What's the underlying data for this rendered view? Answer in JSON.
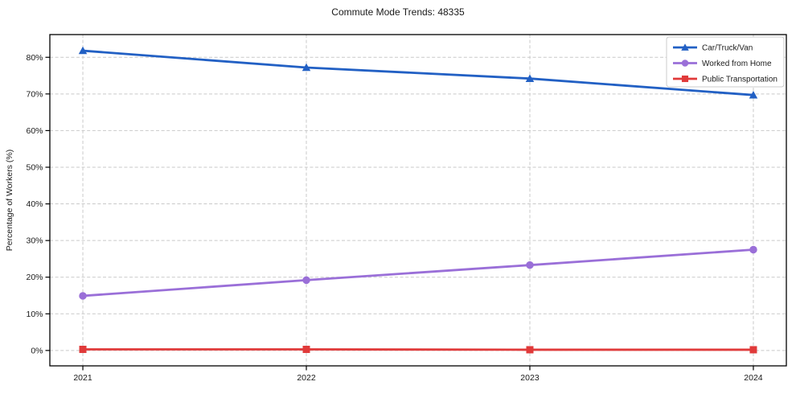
{
  "chart_data": {
    "type": "line",
    "title": "Commute Mode Trends: 48335",
    "xlabel": "",
    "ylabel": "Percentage of Workers (%)",
    "categories": [
      "2021",
      "2022",
      "2023",
      "2024"
    ],
    "series": [
      {
        "name": "Car/Truck/Van",
        "values": [
          81.8,
          77.2,
          74.2,
          69.7
        ],
        "color": "#2260c4",
        "marker": "triangle"
      },
      {
        "name": "Worked from Home",
        "values": [
          14.9,
          19.2,
          23.3,
          27.5
        ],
        "color": "#9a6fd8",
        "marker": "circle"
      },
      {
        "name": "Public Transportation",
        "values": [
          0.3,
          0.3,
          0.2,
          0.2
        ],
        "color": "#e03a3a",
        "marker": "square"
      }
    ],
    "y_ticks": [
      "0%",
      "10%",
      "20%",
      "30%",
      "40%",
      "50%",
      "60%",
      "70%",
      "80%"
    ],
    "y_tick_values": [
      0,
      10,
      20,
      30,
      40,
      50,
      60,
      70,
      80
    ],
    "ylim": [
      -4.2,
      86.2
    ],
    "grid": true,
    "legend_position": "upper right",
    "grid_color": "#c9c9c9",
    "background_color": "#ffffff"
  }
}
